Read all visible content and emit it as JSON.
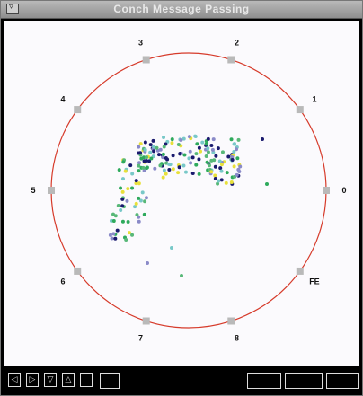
{
  "window": {
    "title": "Conch Message Passing"
  },
  "nodes": [
    {
      "label": "2"
    },
    {
      "label": "1"
    },
    {
      "label": "0"
    },
    {
      "label": "FE"
    },
    {
      "label": "8"
    },
    {
      "label": "7"
    },
    {
      "label": "6"
    },
    {
      "label": "5"
    },
    {
      "label": "4"
    },
    {
      "label": "3"
    }
  ],
  "toolbar": {
    "icons": [
      "triangle-left-icon",
      "triangle-right-icon",
      "triangle-down-icon",
      "triangle-up-icon"
    ],
    "glyphs": [
      "◁",
      "▷",
      "▽",
      "△"
    ]
  },
  "colors": {
    "ring": "#d63a2a",
    "node": "#b9b9b9",
    "palette": [
      "#1a1a6e",
      "#2eaa5c",
      "#78c8c8",
      "#e8e03a",
      "#8a8ac8",
      "#58b878"
    ]
  }
}
